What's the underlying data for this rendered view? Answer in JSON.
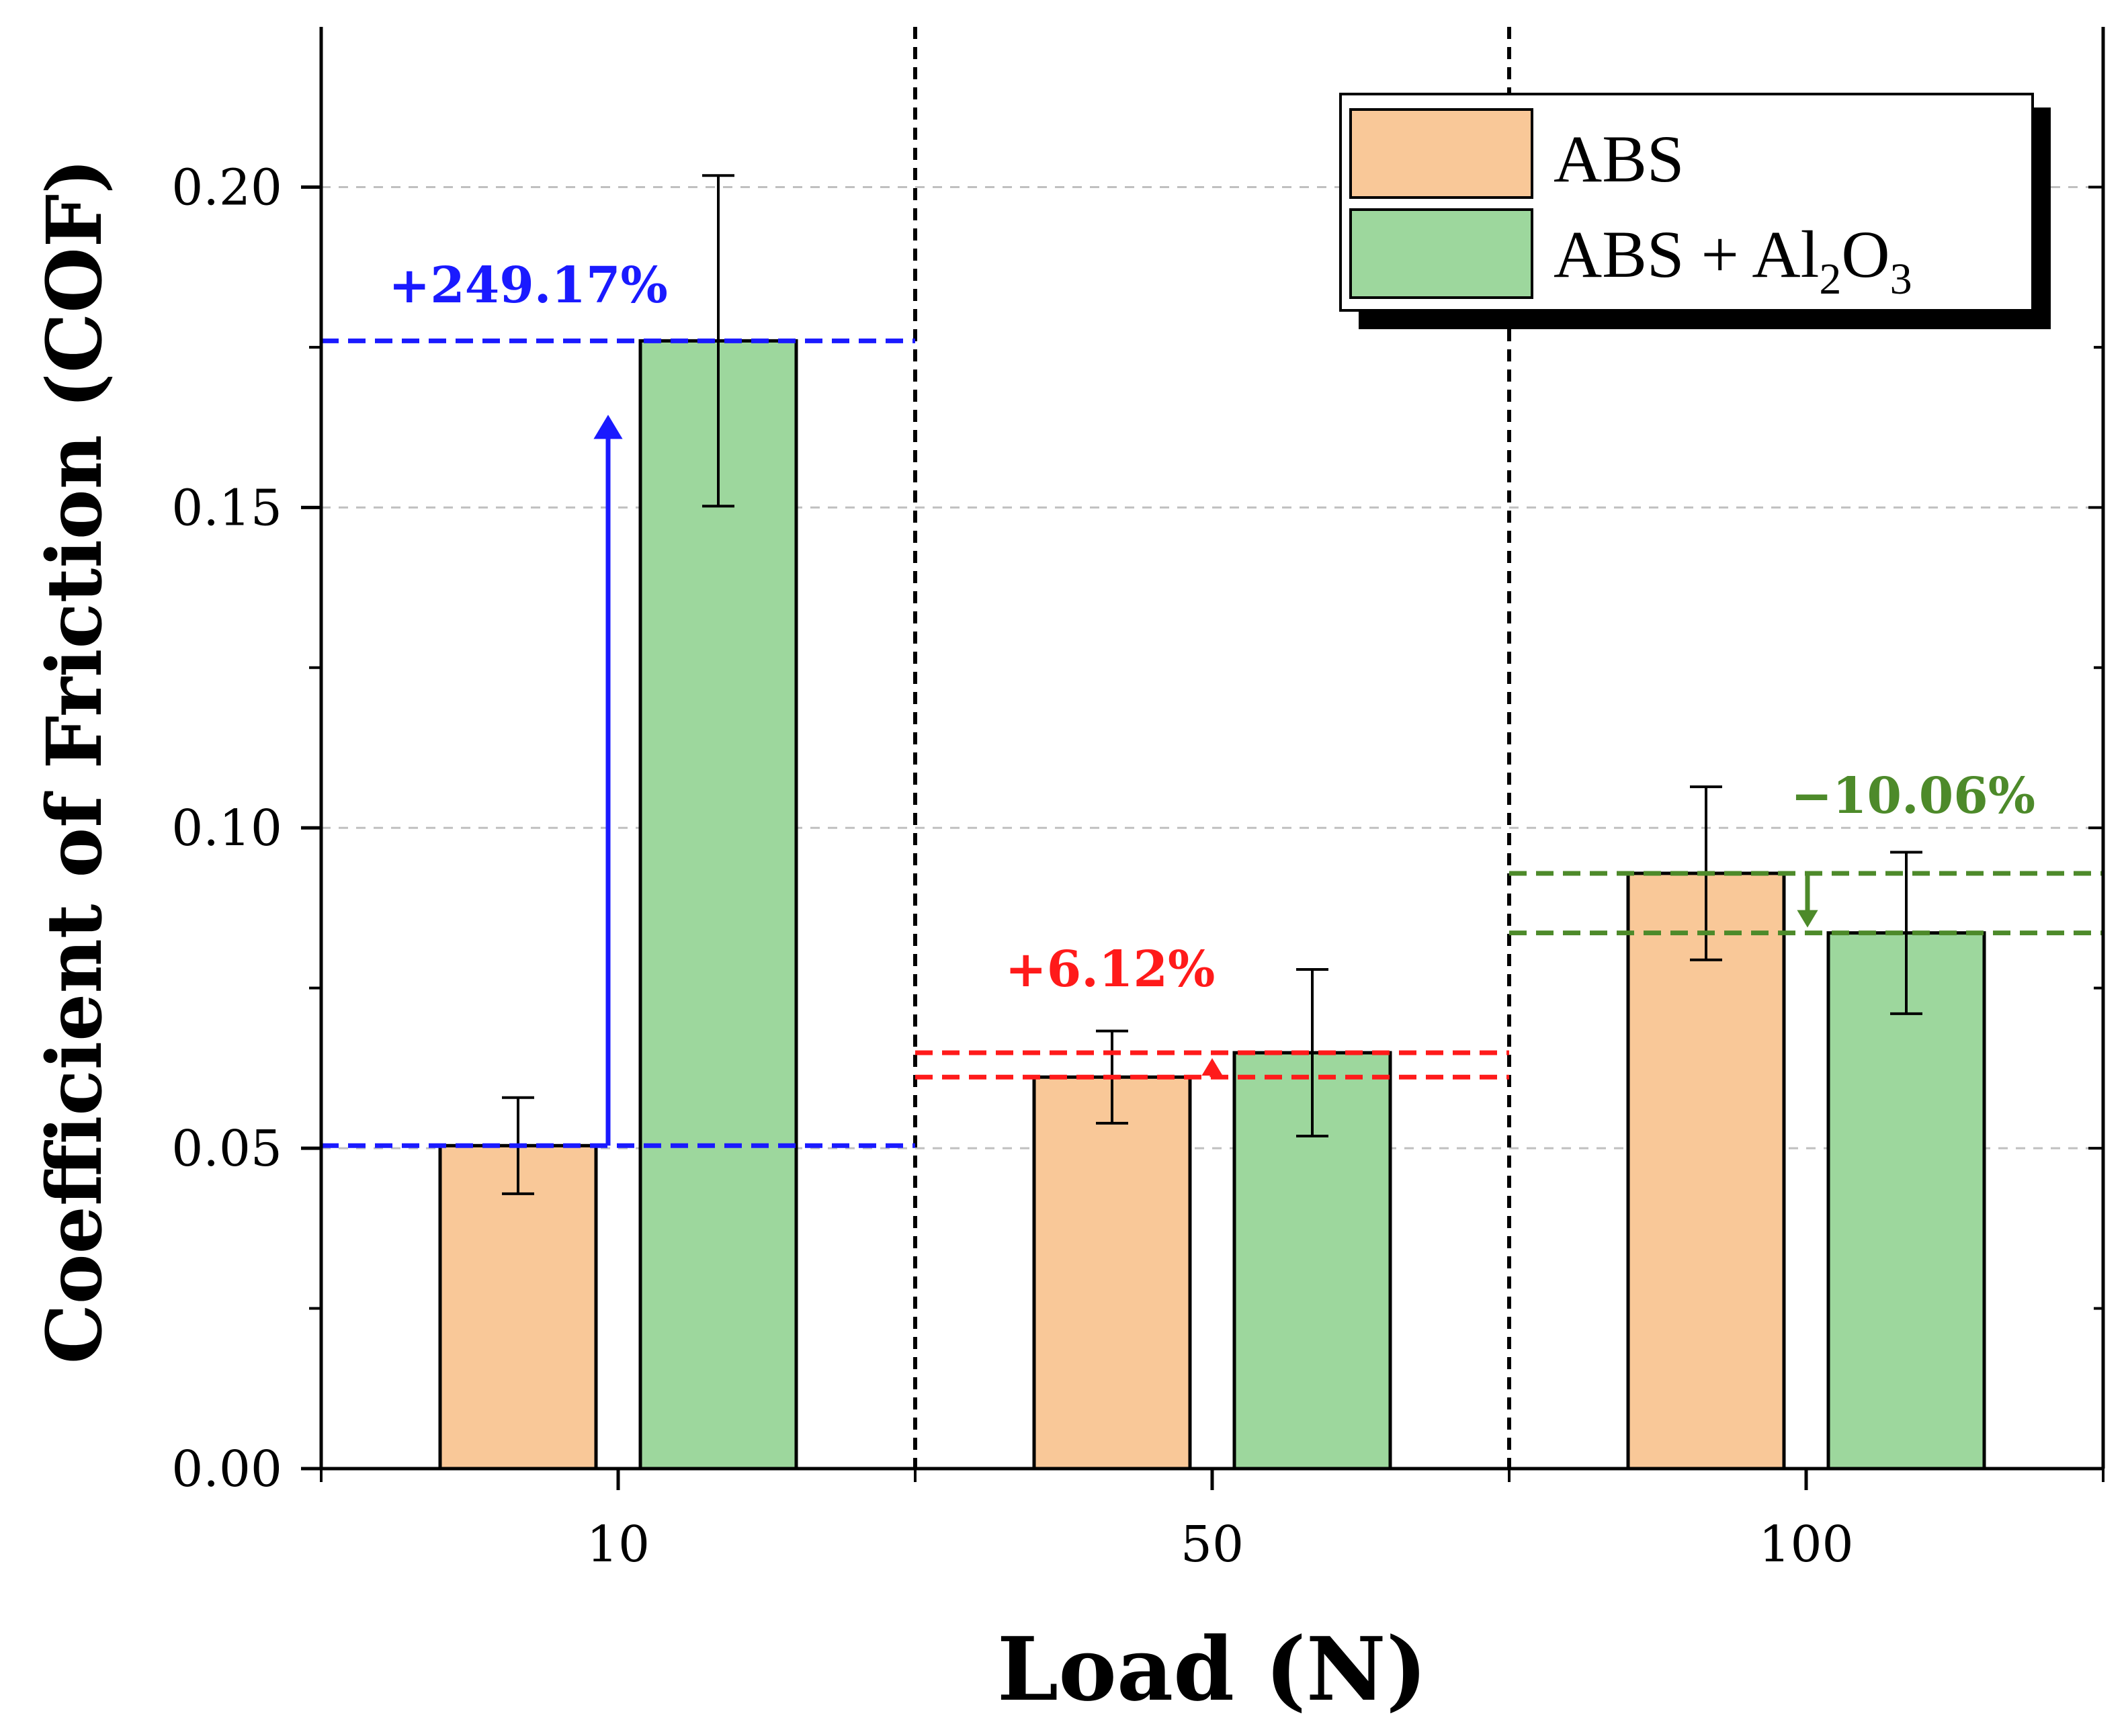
{
  "chart_data": {
    "type": "bar",
    "title": "",
    "xlabel": "Load (N)",
    "ylabel": "Coefficient of Friction (COF)",
    "categories": [
      "10",
      "50",
      "100"
    ],
    "ylim": [
      0,
      0.225
    ],
    "yticks": [
      0.0,
      0.05,
      0.1,
      0.15,
      0.2
    ],
    "ytick_labels": [
      "0.00",
      "0.05",
      "0.10",
      "0.15",
      "0.20"
    ],
    "grid": "horizontal dashed",
    "legend_position": "top-right",
    "series": [
      {
        "name": "ABS",
        "color": "#f9c898",
        "values": [
          0.0504,
          0.0611,
          0.0929
        ],
        "errors": [
          0.0075,
          0.0072,
          0.0135
        ]
      },
      {
        "name": "ABS + Al2O3",
        "color": "#9dd79d",
        "values": [
          0.176,
          0.0649,
          0.0836
        ],
        "errors": [
          0.0258,
          0.013,
          0.0126
        ]
      }
    ],
    "annotations": [
      {
        "text": "+249.17%",
        "category": "10",
        "from": 0.0504,
        "to": 0.176,
        "color": "#1a1aff",
        "direction": "up"
      },
      {
        "text": "+6.12%",
        "category": "50",
        "from": 0.0611,
        "to": 0.0649,
        "color": "#ff1a1a",
        "direction": "up"
      },
      {
        "text": "−10.06%",
        "category": "100",
        "from": 0.0929,
        "to": 0.0836,
        "color": "#4d8a2a",
        "direction": "down"
      }
    ]
  },
  "legend": {
    "abs_label": "ABS",
    "composite_label_main": "ABS + Al",
    "composite_sub1": "2",
    "composite_O": "O",
    "composite_sub2": "3"
  }
}
